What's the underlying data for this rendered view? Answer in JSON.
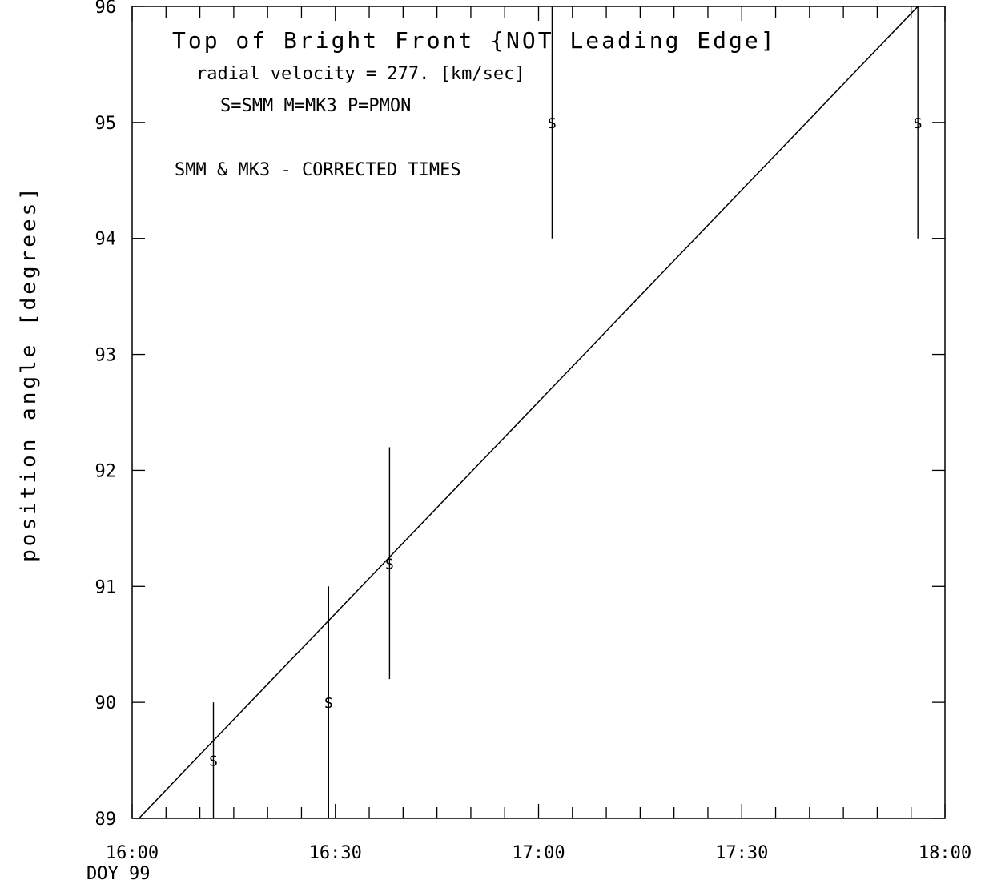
{
  "chart_data": {
    "type": "scatter",
    "title": "Top of Bright Front {NOT Leading Edge]",
    "subtitle": "radial velocity =  277. [km/sec]",
    "legend_line": "S=SMM  M=MK3  P=PMON",
    "note": "SMM & MK3 - CORRECTED TIMES",
    "xlabel": "",
    "ylabel": "position angle [degrees]",
    "x_axis_sublabel": "DOY 99",
    "x_range_minutes_after_16h": [
      0,
      120
    ],
    "ylim": [
      89,
      96
    ],
    "x_tick_labels": [
      "16:00",
      "16:30",
      "17:00",
      "17:30",
      "18:00"
    ],
    "y_tick_labels": [
      "89",
      "90",
      "91",
      "92",
      "93",
      "94",
      "95",
      "96"
    ],
    "series": [
      {
        "marker": "S",
        "points": [
          {
            "time": "16:12",
            "y": 89.5,
            "err_low": 89.0,
            "err_high": 90.0
          },
          {
            "time": "16:29",
            "y": 90.0,
            "err_low": 89.0,
            "err_high": 91.0
          },
          {
            "time": "16:38",
            "y": 91.2,
            "err_low": 90.2,
            "err_high": 92.2
          },
          {
            "time": "17:02",
            "y": 95.0,
            "err_low": 94.0,
            "err_high": 96.0
          },
          {
            "time": "17:56",
            "y": 95.0,
            "err_low": 94.0,
            "err_high": 96.0
          }
        ]
      }
    ],
    "fit_line": {
      "start": {
        "time": "16:01",
        "y": 89.0
      },
      "end": {
        "time": "17:56",
        "y": 96.0
      }
    },
    "grid": false
  }
}
